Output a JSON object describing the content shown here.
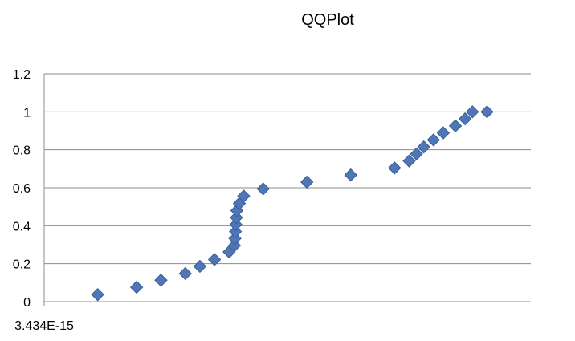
{
  "chart_data": {
    "type": "scatter",
    "title": "QQPlot",
    "xlabel": "",
    "ylabel": "",
    "ylim": [
      0,
      1.2
    ],
    "yticks": [
      "0",
      "0.2",
      "0.4",
      "0.6",
      "0.8",
      "1",
      "1.2"
    ],
    "xticks": [
      "3.434E-15"
    ],
    "grid": true,
    "marker": "diamond",
    "color": "#4f77b7",
    "series": [
      {
        "x": [
          0.11,
          0.19,
          0.24,
          0.29,
          0.32,
          0.35,
          0.38,
          0.391,
          0.392,
          0.393,
          0.394,
          0.395,
          0.396,
          0.401,
          0.41,
          0.45,
          0.54,
          0.63,
          0.72,
          0.75,
          0.765,
          0.78,
          0.8,
          0.82,
          0.845,
          0.865,
          0.88,
          0.91
        ],
        "y": [
          0.037,
          0.076,
          0.113,
          0.148,
          0.186,
          0.222,
          0.262,
          0.296,
          0.333,
          0.369,
          0.406,
          0.443,
          0.48,
          0.517,
          0.556,
          0.594,
          0.63,
          0.667,
          0.704,
          0.741,
          0.778,
          0.815,
          0.852,
          0.889,
          0.926,
          0.963,
          1.0,
          1.0
        ]
      }
    ]
  }
}
